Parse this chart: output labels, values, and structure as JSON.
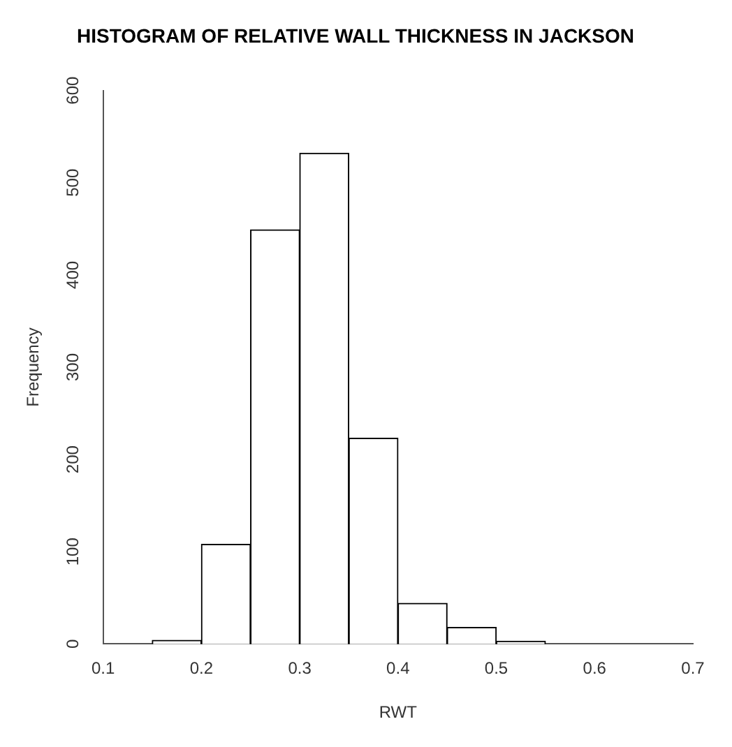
{
  "chart_data": {
    "type": "histogram",
    "title": "HISTOGRAM OF RELATIVE WALL THICKNESS IN JACKSON",
    "xlabel": "RWT",
    "ylabel": "Frequency",
    "bins": [
      0.15,
      0.2,
      0.25,
      0.3,
      0.35,
      0.4,
      0.45,
      0.5,
      0.55,
      0.6
    ],
    "values": [
      4,
      108,
      449,
      532,
      223,
      44,
      18,
      3,
      0
    ],
    "color": "#ffffff",
    "xlim": [
      0.1,
      0.7
    ],
    "xticks": [
      0.1,
      0.2,
      0.3,
      0.4,
      0.5,
      0.6,
      0.7
    ],
    "ylim": [
      0,
      600
    ],
    "yticks": [
      0,
      100,
      200,
      300,
      400,
      500,
      600
    ],
    "grid": false,
    "legend": false
  }
}
